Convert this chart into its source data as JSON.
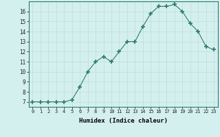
{
  "x": [
    0,
    1,
    2,
    3,
    4,
    5,
    6,
    7,
    8,
    9,
    10,
    11,
    12,
    13,
    14,
    15,
    16,
    17,
    18,
    19,
    20,
    21,
    22,
    23
  ],
  "y": [
    7,
    7,
    7,
    7,
    7,
    7.2,
    8.5,
    10,
    11,
    11.5,
    11,
    12,
    13,
    13,
    14.5,
    15.8,
    16.5,
    16.5,
    16.7,
    16,
    14.8,
    14,
    12.5,
    12.2
  ],
  "title": "",
  "xlabel": "Humidex (Indice chaleur)",
  "xlim": [
    -0.5,
    23.5
  ],
  "ylim": [
    6.5,
    17.0
  ],
  "line_color": "#2d7a6e",
  "marker_color": "#2d7a6e",
  "bg_color": "#d4f0ee",
  "grid_color": "#c0ddd8",
  "yticks": [
    7,
    8,
    9,
    10,
    11,
    12,
    13,
    14,
    15,
    16
  ],
  "xticks": [
    0,
    1,
    2,
    3,
    4,
    5,
    6,
    7,
    8,
    9,
    10,
    11,
    12,
    13,
    14,
    15,
    16,
    17,
    18,
    19,
    20,
    21,
    22,
    23
  ],
  "xtick_labels": [
    "0",
    "1",
    "2",
    "3",
    "4",
    "5",
    "6",
    "7",
    "8",
    "9",
    "10",
    "11",
    "12",
    "13",
    "14",
    "15",
    "16",
    "17",
    "18",
    "19",
    "20",
    "21",
    "22",
    "23"
  ]
}
